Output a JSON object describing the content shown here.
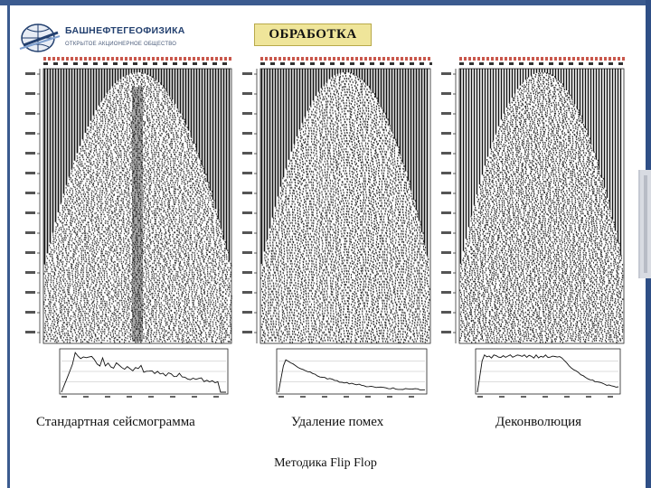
{
  "header": {
    "logo_name": "БАШНЕФТЕГЕОФИЗИКА",
    "logo_subtitle": "ОТКРЫТОЕ АКЦИОНЕРНОЕ ОБЩЕСТВО",
    "title": "ОБРАБОТКА"
  },
  "panels": [
    {
      "caption": "Стандартная сейсмограмма",
      "style": "standard",
      "spectrum": "peaked"
    },
    {
      "caption": "Удаление помех",
      "style": "denoised",
      "spectrum": "decay"
    },
    {
      "caption": "Деконволюция",
      "style": "deconvolved",
      "spectrum": "flat"
    }
  ],
  "footer": {
    "text": "Методика Flip Flop"
  },
  "colors": {
    "frame": "#3b5b8f",
    "title_bg": "#efe59a",
    "trace": "#111111",
    "header_ticks": "#c0392b"
  }
}
